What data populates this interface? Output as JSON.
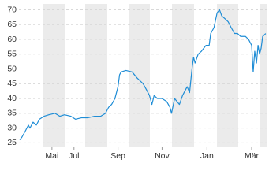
{
  "chart_data": {
    "type": "line",
    "x": [
      0.04,
      0.14,
      0.29,
      0.43,
      0.5,
      0.64,
      0.79,
      0.93,
      1.14,
      1.36,
      1.64,
      1.86,
      2.07,
      2.36,
      2.57,
      2.86,
      3.14,
      3.43,
      3.71,
      3.93,
      4.07,
      4.21,
      4.36,
      4.5,
      4.57,
      4.64,
      4.86,
      5.14,
      5.36,
      5.5,
      5.64,
      5.79,
      5.93,
      6.04,
      6.14,
      6.29,
      6.5,
      6.71,
      6.86,
      6.93,
      7.07,
      7.29,
      7.43,
      7.64,
      7.75,
      7.86,
      7.93,
      8,
      8.14,
      8.29,
      8.5,
      8.64,
      8.71,
      8.86,
      9,
      9.11,
      9.21,
      9.36,
      9.5,
      9.64,
      9.79,
      9.93,
      10.07,
      10.29,
      10.43,
      10.57,
      10.64,
      10.71,
      10.79,
      10.86,
      10.93,
      11,
      11.07,
      11.21
    ],
    "series": [
      {
        "color": "#1f8dd6",
        "values": [
          26,
          27,
          29,
          31,
          30,
          32,
          31,
          33,
          34,
          34.5,
          35,
          34,
          34.5,
          34,
          33,
          33.5,
          33.5,
          34,
          34,
          35,
          37,
          38,
          40,
          44,
          48,
          49,
          49.5,
          49,
          47,
          46,
          45,
          43,
          41,
          38,
          41,
          40,
          40,
          39,
          37,
          35,
          40,
          38,
          41,
          44,
          42,
          50,
          54,
          52,
          55,
          56,
          58,
          58,
          62,
          64,
          69,
          70,
          68,
          67,
          66,
          64,
          62,
          62,
          61,
          61,
          60,
          58,
          49,
          56,
          52,
          58,
          55,
          57,
          61,
          62
        ]
      }
    ],
    "xlim": [
      0,
      11.25
    ],
    "xticks": [
      {
        "value": 1.5,
        "label": "Mai"
      },
      {
        "value": 2.5,
        "label": "Jul"
      },
      {
        "value": 4.5,
        "label": "Sep"
      },
      {
        "value": 6.5,
        "label": "Nov"
      },
      {
        "value": 8.54,
        "label": "Jan"
      },
      {
        "value": 10.57,
        "label": "Mär"
      }
    ],
    "ylim": [
      23.5,
      72
    ],
    "yticks": [
      25,
      30,
      35,
      40,
      45,
      50,
      55,
      60,
      65,
      70
    ],
    "grid": true
  }
}
